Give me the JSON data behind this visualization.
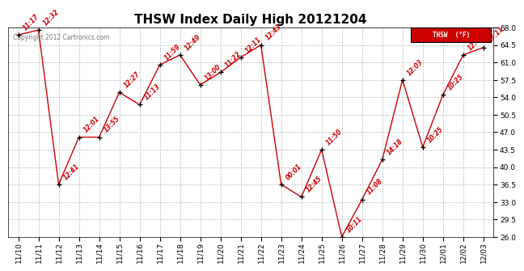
{
  "title": "THSW Index Daily High 20121204",
  "copyright": "Copyright 2012 Cartronics.com",
  "legend_label": "THSW  (°F)",
  "x_labels": [
    "11/10",
    "11/11",
    "11/12",
    "11/13",
    "11/14",
    "11/15",
    "11/16",
    "11/17",
    "11/18",
    "11/19",
    "11/20",
    "11/21",
    "11/22",
    "11/23",
    "11/24",
    "11/25",
    "11/26",
    "11/27",
    "11/28",
    "11/29",
    "11/30",
    "12/01",
    "12/02",
    "12/03"
  ],
  "y_values": [
    66.5,
    67.5,
    36.5,
    46.0,
    46.0,
    55.0,
    52.5,
    60.5,
    62.5,
    56.5,
    59.0,
    62.0,
    64.5,
    36.5,
    34.0,
    43.5,
    26.0,
    33.5,
    41.5,
    57.5,
    44.0,
    54.5,
    62.5,
    64.0
  ],
  "point_times": [
    "11:17",
    "12:32",
    "12:41",
    "12:01",
    "13:55",
    "12:27",
    "11:13",
    "11:59",
    "12:49",
    "13:00",
    "11:22",
    "12:11",
    "12:43",
    "00:01",
    "12:45",
    "11:50",
    "10:11",
    "11:08",
    "14:18",
    "12:03",
    "10:25",
    "10:25",
    "12:41",
    "17:11"
  ],
  "ylim": [
    26.0,
    68.0
  ],
  "yticks": [
    26.0,
    29.5,
    33.0,
    36.5,
    40.0,
    43.5,
    47.0,
    50.5,
    54.0,
    57.5,
    61.0,
    64.5,
    68.0
  ],
  "line_color": "#cc0000",
  "bg_color": "#ffffff",
  "grid_color": "#bbbbbb",
  "title_fontsize": 11,
  "tick_fontsize": 6.5,
  "annotation_fontsize": 5.5,
  "legend_bg": "#cc0000",
  "legend_text_color": "#ffffff"
}
